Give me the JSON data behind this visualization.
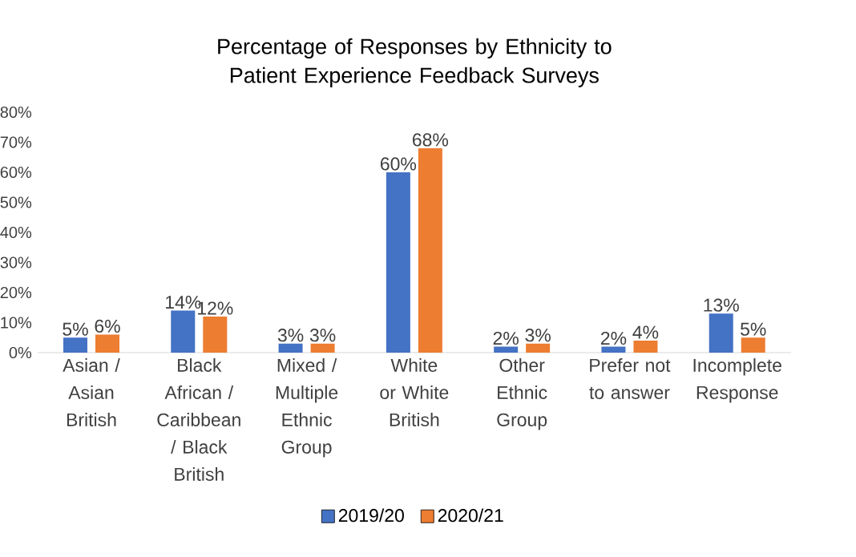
{
  "chart_data": {
    "type": "bar",
    "title": "Percentage of Responses by Ethnicity to Patient Experience Feedback Surveys",
    "categories": [
      "Asian / Asian British",
      "Black African / Caribbean / Black British",
      "Mixed / Multiple Ethnic Group",
      "White or White British",
      "Other Ethnic Group",
      "Prefer not to answer",
      "Incomplete Response"
    ],
    "series": [
      {
        "name": "2019/20",
        "color": "#4472c4",
        "values": [
          5,
          14,
          3,
          60,
          2,
          2,
          13
        ],
        "value_labels": [
          "5%",
          "14%",
          "3%",
          "60%",
          "2%",
          "2%",
          "13%"
        ]
      },
      {
        "name": "2020/21",
        "color": "#ed7d31",
        "values": [
          6,
          12,
          3,
          68,
          3,
          4,
          5
        ],
        "value_labels": [
          "6%",
          "12%",
          "3%",
          "68%",
          "3%",
          "4%",
          "5%"
        ]
      }
    ],
    "ylim": [
      0,
      80
    ],
    "yticks": [
      {
        "value": 0,
        "label": "0%"
      },
      {
        "value": 10,
        "label": "10%"
      },
      {
        "value": 20,
        "label": "20%"
      },
      {
        "value": 30,
        "label": "30%"
      },
      {
        "value": 40,
        "label": "40%"
      },
      {
        "value": 50,
        "label": "50%"
      },
      {
        "value": 60,
        "label": "60%"
      },
      {
        "value": 70,
        "label": "70%"
      },
      {
        "value": 80,
        "label": "80%"
      }
    ],
    "legend": "bottom"
  }
}
